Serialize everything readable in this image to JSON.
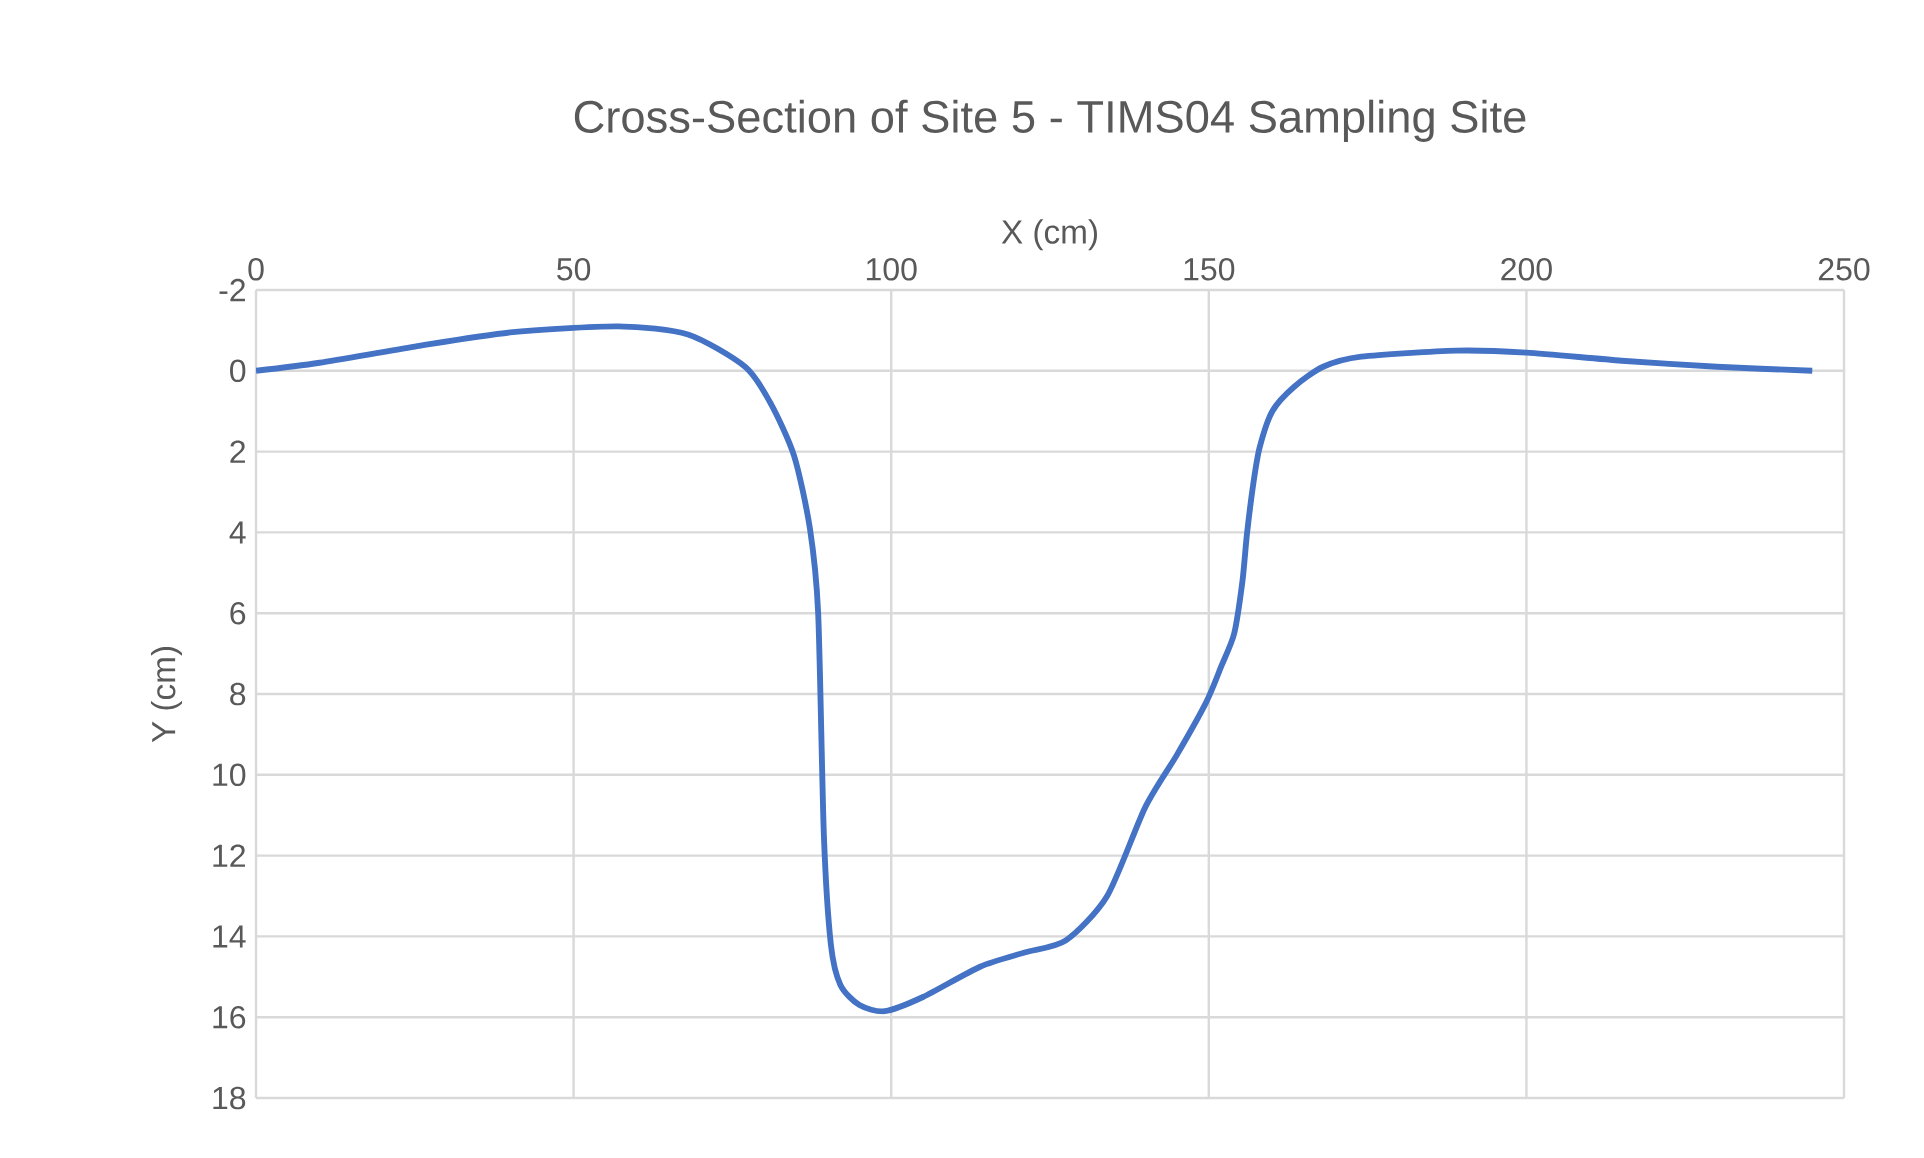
{
  "chart_data": {
    "type": "line",
    "title": "Cross-Section of Site 5 - TIMS04 Sampling Site",
    "xlabel": "X (cm)",
    "ylabel": "Y (cm)",
    "xlim": [
      0,
      250
    ],
    "xticks": [
      0,
      50,
      100,
      150,
      200,
      250
    ],
    "ylim": [
      18,
      -2
    ],
    "yticks": [
      -2,
      0,
      2,
      4,
      6,
      8,
      10,
      12,
      14,
      16,
      18
    ],
    "grid": true,
    "series": [
      {
        "color": "#4472c4",
        "x": [
          0,
          10,
          25,
          40,
          57,
          68,
          77,
          81,
          84.7,
          87.2,
          88.5,
          89.4,
          90.5,
          92,
          95,
          99,
          105,
          114,
          121,
          127.5,
          134,
          140,
          145,
          149.6,
          152,
          154,
          155.3,
          156,
          157,
          158,
          160,
          163.4,
          168,
          174,
          189,
          200,
          215,
          230,
          245
        ],
        "values": [
          0,
          -0.2,
          -0.6,
          -0.95,
          -1.1,
          -0.9,
          -0.1,
          0.8,
          2.1,
          3.9,
          6,
          11.5,
          14.2,
          15.2,
          15.7,
          15.85,
          15.5,
          14.75,
          14.4,
          14.1,
          13,
          10.8,
          9.5,
          8.2,
          7.3,
          6.5,
          5.2,
          4.05,
          2.8,
          1.9,
          1,
          0.4,
          -0.1,
          -0.35,
          -0.5,
          -0.45,
          -0.25,
          -0.1,
          0
        ]
      }
    ]
  }
}
